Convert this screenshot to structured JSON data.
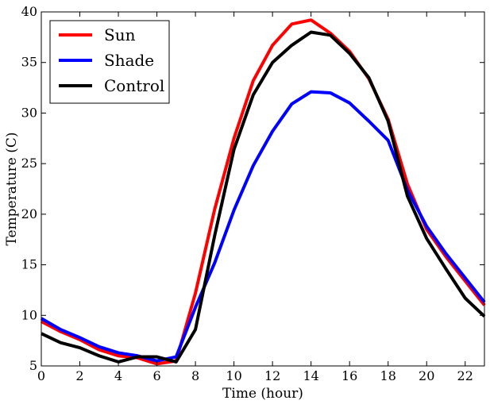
{
  "chart_data": {
    "type": "line",
    "xlabel": "Time (hour)",
    "ylabel": "Temperature (C)",
    "xlim": [
      0,
      23
    ],
    "ylim": [
      5,
      40
    ],
    "x_ticks": [
      0,
      2,
      4,
      6,
      8,
      10,
      12,
      14,
      16,
      18,
      20,
      22
    ],
    "y_ticks": [
      5,
      10,
      15,
      20,
      25,
      30,
      35,
      40
    ],
    "grid": false,
    "legend_position": "top-left",
    "x": [
      0,
      1,
      2,
      3,
      4,
      5,
      6,
      7,
      8,
      9,
      10,
      11,
      12,
      13,
      14,
      15,
      16,
      17,
      18,
      19,
      20,
      21,
      22,
      23
    ],
    "series": [
      {
        "name": "Sun",
        "color": "#ff0000",
        "values": [
          9.4,
          8.4,
          7.6,
          6.6,
          6.0,
          5.8,
          5.2,
          5.5,
          12.2,
          20.5,
          27.5,
          33.2,
          36.7,
          38.8,
          39.2,
          37.9,
          36.1,
          33.4,
          29.4,
          23.0,
          18.5,
          15.8,
          13.4,
          11.0
        ]
      },
      {
        "name": "Shade",
        "color": "#0000ff",
        "values": [
          9.7,
          8.6,
          7.8,
          6.9,
          6.3,
          6.0,
          5.5,
          5.9,
          10.8,
          15.2,
          20.4,
          24.8,
          28.2,
          30.9,
          32.1,
          32.0,
          31.0,
          29.2,
          27.3,
          22.4,
          18.8,
          16.1,
          13.7,
          11.3
        ]
      },
      {
        "name": "Control",
        "color": "#000000",
        "values": [
          8.2,
          7.3,
          6.8,
          6.0,
          5.4,
          5.9,
          5.9,
          5.4,
          8.6,
          17.9,
          26.4,
          31.8,
          35.0,
          36.7,
          38.0,
          37.7,
          35.9,
          33.5,
          29.2,
          21.8,
          17.6,
          14.6,
          11.7,
          9.9
        ]
      }
    ]
  }
}
